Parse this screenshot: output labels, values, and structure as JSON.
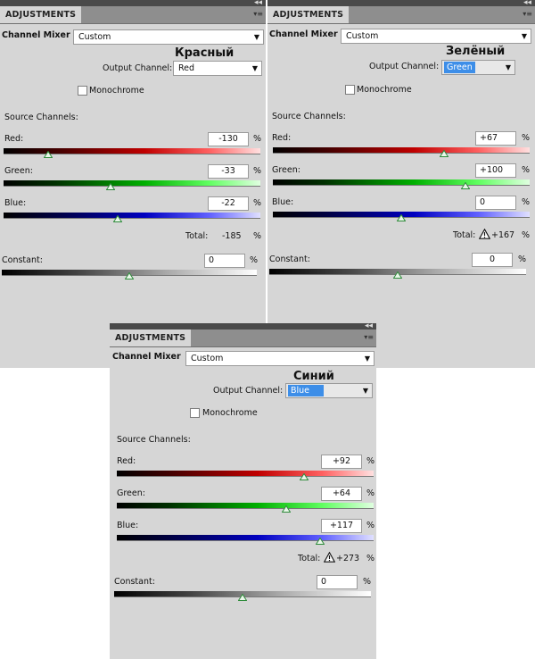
{
  "common": {
    "tab_label": "ADJUSTMENTS",
    "mixer_label": "Channel Mixer",
    "output_channel_label": "Output Channel:",
    "monochrome_label": "Monochrome",
    "source_channels_label": "Source Channels:",
    "red_label": "Red:",
    "green_label": "Green:",
    "blue_label": "Blue:",
    "total_label": "Total:",
    "constant_label": "Constant:",
    "percent": "%",
    "collapse_glyph": "◂◂",
    "menu_glyph": "▾≡",
    "dropdown_arrow": "▼"
  },
  "panels": {
    "red": {
      "annotation": "Красный",
      "preset": "Custom",
      "output_channel": "Red",
      "monochrome": false,
      "red_value": "-130",
      "red_level": -130,
      "green_value": "-33",
      "green_level": -33,
      "blue_value": "-22",
      "blue_level": -22,
      "total": "-185",
      "total_warning": false,
      "constant_value": "0",
      "constant_level": 0
    },
    "green": {
      "annotation": "Зелёный",
      "preset": "Custom",
      "output_channel": "Green",
      "monochrome": false,
      "red_value": "+67",
      "red_level": 67,
      "green_value": "+100",
      "green_level": 100,
      "blue_value": "0",
      "blue_level": 0,
      "total": "+167",
      "total_warning": true,
      "constant_value": "0",
      "constant_level": 0
    },
    "blue": {
      "annotation": "Синий",
      "preset": "Custom",
      "output_channel": "Blue",
      "monochrome": false,
      "red_value": "+92",
      "red_level": 92,
      "green_value": "+64",
      "green_level": 64,
      "blue_value": "+117",
      "blue_level": 117,
      "total": "+273",
      "total_warning": true,
      "constant_value": "0",
      "constant_level": 0
    }
  },
  "slider_range": [
    -200,
    200
  ],
  "colors": {
    "panel_bg": "#d6d6d6",
    "highlight": "#3d8ee8",
    "red": "#ff2020",
    "green": "#20e020",
    "blue": "#2020ff",
    "thumb": "#2e8b3a"
  }
}
